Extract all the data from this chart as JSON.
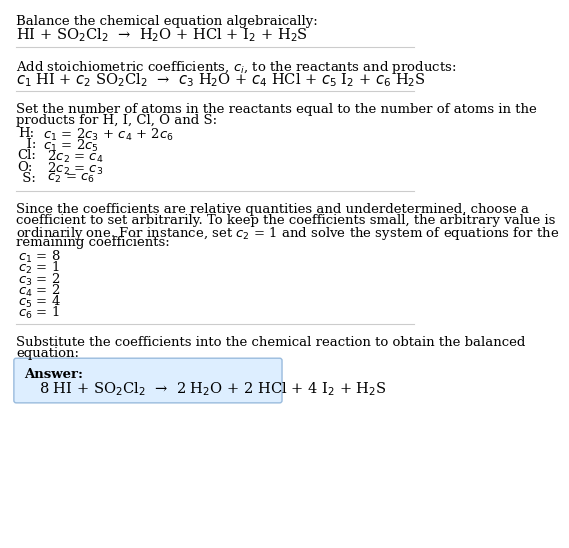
{
  "title": "Balance the chemical equation algebraically:",
  "equation_line": "HI + SO$_2$Cl$_2$  →  H$_2$O + HCl + I$_2$ + H$_2$S",
  "section2_intro": "Add stoichiometric coefficients, $c_i$, to the reactants and products:",
  "section2_eq": "$c_1$ HI + $c_2$ SO$_2$Cl$_2$  →  $c_3$ H$_2$O + $c_4$ HCl + $c_5$ I$_2$ + $c_6$ H$_2$S",
  "section3_intro_1": "Set the number of atoms in the reactants equal to the number of atoms in the",
  "section3_intro_2": "products for H, I, Cl, O and S:",
  "atom_equations": [
    [
      "H:",
      " $c_1$ = 2$c_3$ + $c_4$ + 2$c_6$"
    ],
    [
      "  I:",
      " $c_1$ = 2$c_5$"
    ],
    [
      "Cl:",
      "  2$c_2$ = $c_4$"
    ],
    [
      "O:",
      "  2$c_2$ = $c_3$"
    ],
    [
      " S:",
      "  $c_2$ = $c_6$"
    ]
  ],
  "section4_intro": [
    "Since the coefficients are relative quantities and underdetermined, choose a",
    "coefficient to set arbitrarily. To keep the coefficients small, the arbitrary value is",
    "ordinarily one. For instance, set $c_2$ = 1 and solve the system of equations for the",
    "remaining coefficients:"
  ],
  "coefficients": [
    "$c_1$ = 8",
    "$c_2$ = 1",
    "$c_3$ = 2",
    "$c_4$ = 2",
    "$c_5$ = 4",
    "$c_6$ = 1"
  ],
  "section5_intro_1": "Substitute the coefficients into the chemical reaction to obtain the balanced",
  "section5_intro_2": "equation:",
  "answer_label": "Answer:",
  "answer_eq": "8 HI + SO$_2$Cl$_2$  →  2 H$_2$O + 2 HCl + 4 I$_2$ + H$_2$S",
  "bg_color": "#ffffff",
  "text_color": "#000000",
  "box_bg_color": "#ddeeff",
  "box_edge_color": "#99bbdd",
  "line_color": "#cccccc",
  "fs": 9.5,
  "fs_eq": 10.5,
  "lh": 14.5
}
